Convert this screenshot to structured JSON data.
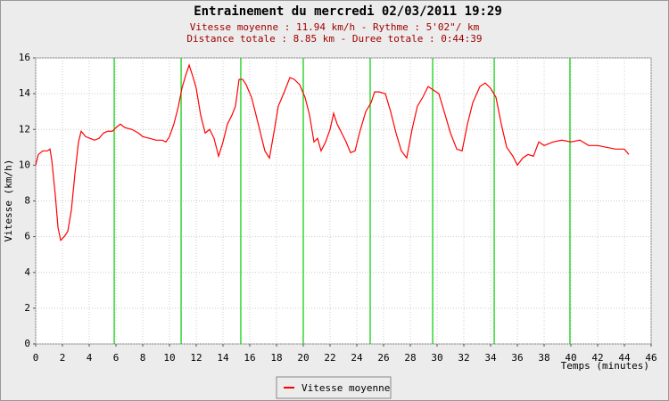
{
  "chart_data": {
    "type": "line",
    "title": "Entrainement du mercredi 02/03/2011 19:29",
    "subtitle": [
      "Vitesse moyenne : 11.94 km/h - Rythme : 5'02\"/ km",
      "Distance totale : 8.85 km - Duree totale : 0:44:39"
    ],
    "x_label": "Temps (minutes)",
    "y_label": "Vitesse (km/h)",
    "x": [
      0,
      0.2,
      0.53,
      0.87,
      1.07,
      1.2,
      1.47,
      1.67,
      1.87,
      2.13,
      2.4,
      2.67,
      2.93,
      3.2,
      3.4,
      3.73,
      4.07,
      4.4,
      4.73,
      5.07,
      5.4,
      5.73,
      6.0,
      6.33,
      6.67,
      7.2,
      7.67,
      8.0,
      8.53,
      9.0,
      9.47,
      9.73,
      10.0,
      10.33,
      10.67,
      10.93,
      11.2,
      11.47,
      11.73,
      12.0,
      12.33,
      12.67,
      13.0,
      13.33,
      13.67,
      14.0,
      14.33,
      14.67,
      14.93,
      15.2,
      15.47,
      15.73,
      16.13,
      16.47,
      16.8,
      17.13,
      17.47,
      17.8,
      18.13,
      18.53,
      19.0,
      19.33,
      19.73,
      20.13,
      20.47,
      20.8,
      21.07,
      21.33,
      21.67,
      22.0,
      22.27,
      22.53,
      22.87,
      23.2,
      23.53,
      23.87,
      24.2,
      24.67,
      25.07,
      25.33,
      25.67,
      26.13,
      26.53,
      26.93,
      27.33,
      27.73,
      28.13,
      28.53,
      28.93,
      29.33,
      29.73,
      30.13,
      30.53,
      31.0,
      31.47,
      31.87,
      32.27,
      32.67,
      33.2,
      33.6,
      34.0,
      34.4,
      34.8,
      35.2,
      35.67,
      36.0,
      36.4,
      36.8,
      37.2,
      37.6,
      38.0,
      38.67,
      39.33,
      40.0,
      40.67,
      41.33,
      42.0,
      42.67,
      43.33,
      44.0,
      44.33
    ],
    "series": [
      {
        "name": "Vitesse moyenne",
        "color": "#ff0000",
        "values": [
          10.0,
          10.6,
          10.8,
          10.8,
          10.9,
          10.3,
          8.3,
          6.5,
          5.8,
          6.0,
          6.3,
          7.5,
          9.5,
          11.3,
          11.9,
          11.6,
          11.5,
          11.4,
          11.5,
          11.8,
          11.9,
          11.9,
          12.1,
          12.3,
          12.1,
          12.0,
          11.8,
          11.6,
          11.5,
          11.4,
          11.4,
          11.3,
          11.6,
          12.3,
          13.3,
          14.3,
          15.0,
          15.6,
          15.0,
          14.3,
          12.8,
          11.8,
          12.0,
          11.5,
          10.5,
          11.3,
          12.3,
          12.8,
          13.3,
          14.8,
          14.8,
          14.5,
          13.8,
          12.8,
          11.8,
          10.8,
          10.4,
          11.8,
          13.3,
          14.0,
          14.9,
          14.8,
          14.5,
          13.8,
          12.8,
          11.3,
          11.5,
          10.8,
          11.3,
          12.0,
          12.9,
          12.3,
          11.8,
          11.3,
          10.7,
          10.8,
          11.8,
          13.0,
          13.5,
          14.1,
          14.1,
          14.0,
          13.0,
          11.8,
          10.8,
          10.4,
          12.0,
          13.3,
          13.8,
          14.4,
          14.2,
          14.0,
          13.0,
          11.8,
          10.9,
          10.8,
          12.3,
          13.5,
          14.4,
          14.6,
          14.3,
          13.8,
          12.3,
          11.0,
          10.5,
          10.0,
          10.4,
          10.6,
          10.5,
          11.3,
          11.1,
          11.3,
          11.4,
          11.3,
          11.4,
          11.1,
          11.1,
          11.0,
          10.9,
          10.9,
          10.6
        ]
      }
    ],
    "markers": [
      5.87,
      10.87,
      15.33,
      20.0,
      25.0,
      29.67,
      34.27,
      39.93
    ],
    "marker_color": "#00cc00",
    "xlim": [
      0,
      46
    ],
    "xticks": [
      0,
      2,
      4,
      6,
      8,
      10,
      12,
      14,
      16,
      18,
      20,
      22,
      24,
      26,
      28,
      30,
      32,
      34,
      36,
      38,
      40,
      42,
      44,
      46
    ],
    "ylim": [
      0,
      16
    ],
    "yticks": [
      0,
      2,
      4,
      6,
      8,
      10,
      12,
      14,
      16
    ],
    "grid": true,
    "legend": "bottom"
  }
}
